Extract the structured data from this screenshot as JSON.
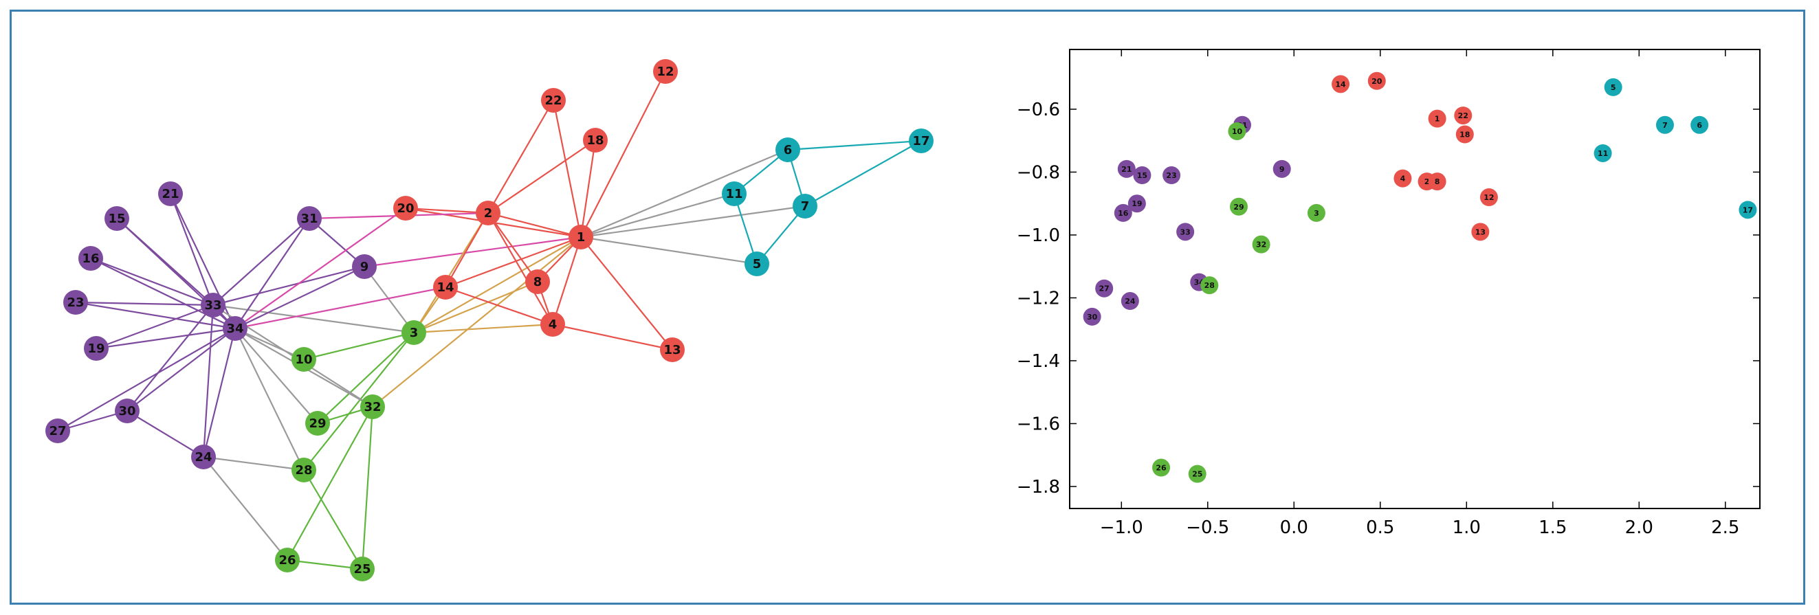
{
  "colors": {
    "frame": "#3c7fb1",
    "gray_edge": "#9a9a9a",
    "community": {
      "red": "#e8524a",
      "cyan": "#17a9b3",
      "purple": "#7d4b9e",
      "green": "#5fb63d",
      "orange": "#d4a24c",
      "pink": "#d84aa8"
    }
  },
  "graph": {
    "nodes": [
      {
        "id": 1,
        "label": "1",
        "c": "red"
      },
      {
        "id": 2,
        "label": "2",
        "c": "red"
      },
      {
        "id": 3,
        "label": "3",
        "c": "green"
      },
      {
        "id": 4,
        "label": "4",
        "c": "red"
      },
      {
        "id": 5,
        "label": "5",
        "c": "cyan"
      },
      {
        "id": 6,
        "label": "6",
        "c": "cyan"
      },
      {
        "id": 7,
        "label": "7",
        "c": "cyan"
      },
      {
        "id": 8,
        "label": "8",
        "c": "red"
      },
      {
        "id": 9,
        "label": "9",
        "c": "purple"
      },
      {
        "id": 10,
        "label": "10",
        "c": "green"
      },
      {
        "id": 11,
        "label": "11",
        "c": "cyan"
      },
      {
        "id": 12,
        "label": "12",
        "c": "red"
      },
      {
        "id": 13,
        "label": "13",
        "c": "red"
      },
      {
        "id": 14,
        "label": "14",
        "c": "red"
      },
      {
        "id": 15,
        "label": "15",
        "c": "purple"
      },
      {
        "id": 16,
        "label": "16",
        "c": "purple"
      },
      {
        "id": 17,
        "label": "17",
        "c": "cyan"
      },
      {
        "id": 18,
        "label": "18",
        "c": "red"
      },
      {
        "id": 19,
        "label": "19",
        "c": "purple"
      },
      {
        "id": 20,
        "label": "20",
        "c": "red"
      },
      {
        "id": 21,
        "label": "21",
        "c": "purple"
      },
      {
        "id": 22,
        "label": "22",
        "c": "red"
      },
      {
        "id": 23,
        "label": "23",
        "c": "purple"
      },
      {
        "id": 24,
        "label": "24",
        "c": "purple"
      },
      {
        "id": 25,
        "label": "25",
        "c": "green"
      },
      {
        "id": 26,
        "label": "26",
        "c": "green"
      },
      {
        "id": 27,
        "label": "27",
        "c": "purple"
      },
      {
        "id": 28,
        "label": "28",
        "c": "green"
      },
      {
        "id": 29,
        "label": "29",
        "c": "green"
      },
      {
        "id": 30,
        "label": "30",
        "c": "purple"
      },
      {
        "id": 31,
        "label": "31",
        "c": "purple"
      },
      {
        "id": 32,
        "label": "32",
        "c": "green"
      },
      {
        "id": 33,
        "label": "33",
        "c": "purple"
      },
      {
        "id": 34,
        "label": "34",
        "c": "purple"
      }
    ],
    "edges": [
      [
        1,
        2,
        "red"
      ],
      [
        1,
        3,
        "orange"
      ],
      [
        1,
        4,
        "red"
      ],
      [
        1,
        5,
        "gray"
      ],
      [
        1,
        6,
        "gray"
      ],
      [
        1,
        7,
        "gray"
      ],
      [
        1,
        8,
        "red"
      ],
      [
        1,
        9,
        "pink"
      ],
      [
        1,
        11,
        "gray"
      ],
      [
        1,
        12,
        "red"
      ],
      [
        1,
        13,
        "red"
      ],
      [
        1,
        14,
        "red"
      ],
      [
        1,
        18,
        "red"
      ],
      [
        1,
        20,
        "red"
      ],
      [
        1,
        22,
        "red"
      ],
      [
        1,
        32,
        "orange"
      ],
      [
        2,
        3,
        "orange"
      ],
      [
        2,
        4,
        "red"
      ],
      [
        2,
        8,
        "red"
      ],
      [
        2,
        14,
        "red"
      ],
      [
        2,
        18,
        "red"
      ],
      [
        2,
        20,
        "red"
      ],
      [
        2,
        22,
        "red"
      ],
      [
        2,
        31,
        "pink"
      ],
      [
        3,
        4,
        "orange"
      ],
      [
        3,
        8,
        "orange"
      ],
      [
        3,
        9,
        "gray"
      ],
      [
        3,
        10,
        "green"
      ],
      [
        3,
        14,
        "orange"
      ],
      [
        3,
        28,
        "green"
      ],
      [
        3,
        29,
        "green"
      ],
      [
        3,
        33,
        "gray"
      ],
      [
        4,
        8,
        "red"
      ],
      [
        4,
        13,
        "red"
      ],
      [
        4,
        14,
        "red"
      ],
      [
        5,
        7,
        "cyan"
      ],
      [
        5,
        11,
        "cyan"
      ],
      [
        6,
        7,
        "cyan"
      ],
      [
        6,
        11,
        "cyan"
      ],
      [
        6,
        17,
        "cyan"
      ],
      [
        7,
        17,
        "cyan"
      ],
      [
        9,
        31,
        "purple"
      ],
      [
        9,
        33,
        "purple"
      ],
      [
        9,
        34,
        "purple"
      ],
      [
        10,
        34,
        "gray"
      ],
      [
        14,
        34,
        "pink"
      ],
      [
        15,
        33,
        "purple"
      ],
      [
        15,
        34,
        "purple"
      ],
      [
        16,
        33,
        "purple"
      ],
      [
        16,
        34,
        "purple"
      ],
      [
        19,
        33,
        "purple"
      ],
      [
        19,
        34,
        "purple"
      ],
      [
        20,
        34,
        "pink"
      ],
      [
        21,
        33,
        "purple"
      ],
      [
        21,
        34,
        "purple"
      ],
      [
        23,
        33,
        "purple"
      ],
      [
        23,
        34,
        "purple"
      ],
      [
        24,
        26,
        "gray"
      ],
      [
        24,
        28,
        "gray"
      ],
      [
        24,
        30,
        "purple"
      ],
      [
        24,
        33,
        "purple"
      ],
      [
        24,
        34,
        "purple"
      ],
      [
        25,
        26,
        "green"
      ],
      [
        25,
        28,
        "green"
      ],
      [
        25,
        32,
        "green"
      ],
      [
        26,
        32,
        "green"
      ],
      [
        27,
        30,
        "purple"
      ],
      [
        27,
        34,
        "purple"
      ],
      [
        28,
        34,
        "gray"
      ],
      [
        29,
        32,
        "green"
      ],
      [
        29,
        34,
        "gray"
      ],
      [
        30,
        33,
        "purple"
      ],
      [
        30,
        34,
        "purple"
      ],
      [
        31,
        33,
        "purple"
      ],
      [
        31,
        34,
        "purple"
      ],
      [
        32,
        33,
        "gray"
      ],
      [
        32,
        34,
        "gray"
      ],
      [
        33,
        34,
        "purple"
      ]
    ]
  },
  "chart_data": {
    "type": "scatter",
    "xlim": [
      -1.3,
      2.7
    ],
    "ylim": [
      -1.87,
      -0.41
    ],
    "xticks": [
      -1.0,
      -0.5,
      0.0,
      0.5,
      1.0,
      1.5,
      2.0,
      2.5
    ],
    "xtick_labels": [
      "−1.0",
      "−0.5",
      "0.0",
      "0.5",
      "1.0",
      "1.5",
      "2.0",
      "2.5"
    ],
    "yticks": [
      -0.6,
      -0.8,
      -1.0,
      -1.2,
      -1.4,
      -1.6,
      -1.8
    ],
    "ytick_labels": [
      "−0.6",
      "−0.8",
      "−1.0",
      "−1.2",
      "−1.4",
      "−1.6",
      "−1.8"
    ],
    "points": [
      {
        "label": "14",
        "x": 0.27,
        "y": -0.52,
        "c": "red"
      },
      {
        "label": "20",
        "x": 0.48,
        "y": -0.51,
        "c": "red"
      },
      {
        "label": "1",
        "x": 0.83,
        "y": -0.63,
        "c": "red"
      },
      {
        "label": "22",
        "x": 0.98,
        "y": -0.62,
        "c": "red"
      },
      {
        "label": "18",
        "x": 0.99,
        "y": -0.68,
        "c": "red"
      },
      {
        "label": "4",
        "x": 0.63,
        "y": -0.82,
        "c": "red"
      },
      {
        "label": "2",
        "x": 0.77,
        "y": -0.83,
        "c": "red"
      },
      {
        "label": "8",
        "x": 0.83,
        "y": -0.83,
        "c": "red"
      },
      {
        "label": "12",
        "x": 1.13,
        "y": -0.88,
        "c": "red"
      },
      {
        "label": "13",
        "x": 1.08,
        "y": -0.99,
        "c": "red"
      },
      {
        "label": "5",
        "x": 1.85,
        "y": -0.53,
        "c": "cyan"
      },
      {
        "label": "7",
        "x": 2.15,
        "y": -0.65,
        "c": "cyan"
      },
      {
        "label": "6",
        "x": 2.35,
        "y": -0.65,
        "c": "cyan"
      },
      {
        "label": "11",
        "x": 1.79,
        "y": -0.74,
        "c": "cyan"
      },
      {
        "label": "17",
        "x": 2.63,
        "y": -0.92,
        "c": "cyan"
      },
      {
        "label": "31",
        "x": -0.3,
        "y": -0.65,
        "c": "purple"
      },
      {
        "label": "9",
        "x": -0.07,
        "y": -0.79,
        "c": "purple"
      },
      {
        "label": "21",
        "x": -0.97,
        "y": -0.79,
        "c": "purple"
      },
      {
        "label": "15",
        "x": -0.88,
        "y": -0.81,
        "c": "purple"
      },
      {
        "label": "23",
        "x": -0.71,
        "y": -0.81,
        "c": "purple"
      },
      {
        "label": "19",
        "x": -0.91,
        "y": -0.9,
        "c": "purple"
      },
      {
        "label": "16",
        "x": -0.99,
        "y": -0.93,
        "c": "purple"
      },
      {
        "label": "33",
        "x": -0.63,
        "y": -0.99,
        "c": "purple"
      },
      {
        "label": "34",
        "x": -0.55,
        "y": -1.15,
        "c": "purple"
      },
      {
        "label": "27",
        "x": -1.1,
        "y": -1.17,
        "c": "purple"
      },
      {
        "label": "24",
        "x": -0.95,
        "y": -1.21,
        "c": "purple"
      },
      {
        "label": "30",
        "x": -1.17,
        "y": -1.26,
        "c": "purple"
      },
      {
        "label": "10",
        "x": -0.33,
        "y": -0.67,
        "c": "green"
      },
      {
        "label": "29",
        "x": -0.32,
        "y": -0.91,
        "c": "green"
      },
      {
        "label": "3",
        "x": 0.13,
        "y": -0.93,
        "c": "green"
      },
      {
        "label": "32",
        "x": -0.19,
        "y": -1.03,
        "c": "green"
      },
      {
        "label": "28",
        "x": -0.49,
        "y": -1.16,
        "c": "green"
      },
      {
        "label": "26",
        "x": -0.77,
        "y": -1.74,
        "c": "green"
      },
      {
        "label": "25",
        "x": -0.56,
        "y": -1.76,
        "c": "green"
      }
    ]
  }
}
